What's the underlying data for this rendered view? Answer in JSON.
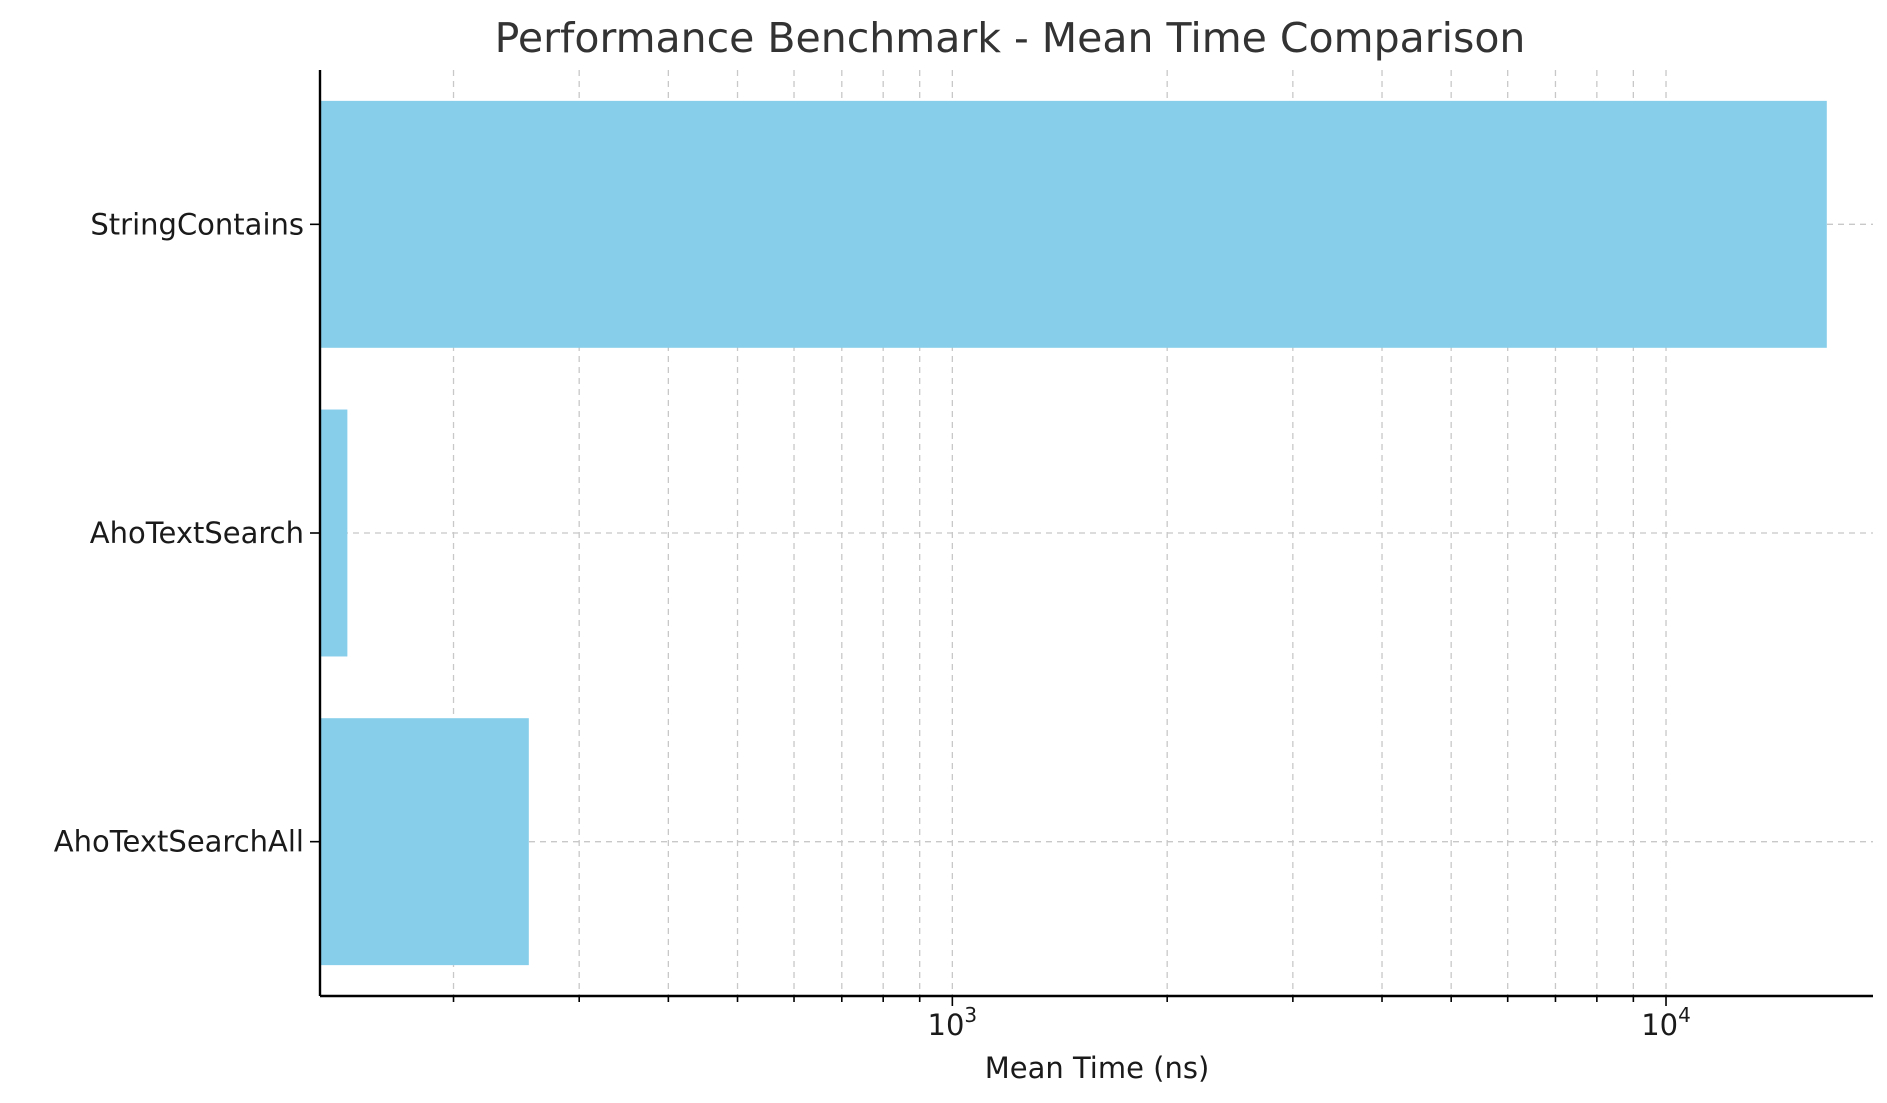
{
  "chart_data": {
    "type": "bar",
    "orientation": "horizontal",
    "title": "Performance Benchmark - Mean Time Comparison",
    "xlabel": "Mean Time (ns)",
    "ylabel": "",
    "x_scale": "log",
    "xlim": [
      130,
      19500
    ],
    "categories": [
      "StringContains",
      "AhoTextSearch",
      "AhoTextSearchAll"
    ],
    "values": [
      16800,
      142,
      255
    ],
    "x_ticks": [
      {
        "base": "10",
        "exp": "3",
        "value": 1000
      },
      {
        "base": "10",
        "exp": "4",
        "value": 10000
      }
    ],
    "grid": true,
    "bar_color": "#87CEEB"
  }
}
